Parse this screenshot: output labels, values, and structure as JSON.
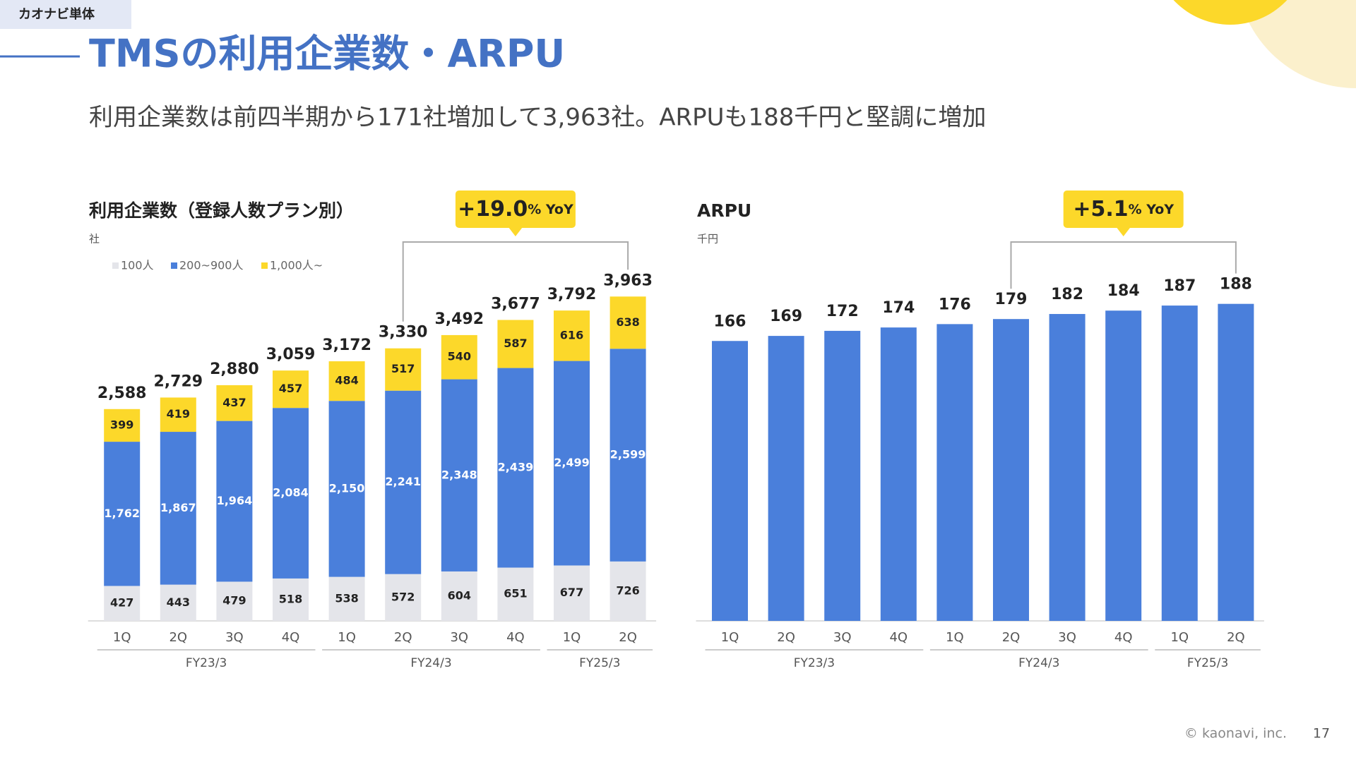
{
  "header": {
    "tag": "カオナビ単体",
    "title": "TMSの利用企業数・ARPU",
    "subtitle": "利用企業数は前四半期から171社増加して3,963社。ARPUも188千円と堅調に増加"
  },
  "chart_data": [
    {
      "type": "stacked_bar",
      "title": "利用企業数（登録人数プラン別）",
      "unit": "社",
      "category_groups": [
        {
          "label": "FY23/3",
          "categories": [
            "1Q",
            "2Q",
            "3Q",
            "4Q"
          ]
        },
        {
          "label": "FY24/3",
          "categories": [
            "1Q",
            "2Q",
            "3Q",
            "4Q"
          ]
        },
        {
          "label": "FY25/3",
          "categories": [
            "1Q",
            "2Q"
          ]
        }
      ],
      "series": [
        {
          "name": "100人",
          "color": "#e4e5ea",
          "values": [
            427,
            443,
            479,
            518,
            538,
            572,
            604,
            651,
            677,
            726
          ]
        },
        {
          "name": "200~900人",
          "color": "#4a7fdb",
          "values": [
            1762,
            1867,
            1964,
            2084,
            2150,
            2241,
            2348,
            2439,
            2499,
            2599
          ],
          "value_labels": [
            "1,762",
            "1,867",
            "1,964",
            "2,084",
            "2,150",
            "2,241",
            "2,348",
            "2,439",
            "2,499",
            "2,599"
          ]
        },
        {
          "name": "1,000人~",
          "color": "#fcd82a",
          "values": [
            399,
            419,
            437,
            457,
            484,
            517,
            540,
            587,
            616,
            638
          ]
        }
      ],
      "totals": {
        "values": [
          2588,
          2729,
          2880,
          3059,
          3172,
          3330,
          3492,
          3677,
          3792,
          3963
        ],
        "value_labels": [
          "2,588",
          "2,729",
          "2,880",
          "3,059",
          "3,172",
          "3,330",
          "3,492",
          "3,677",
          "3,792",
          "3,963"
        ]
      },
      "ylim": [
        0,
        4500
      ],
      "annotation": {
        "text": "+19.0",
        "suffix": "% YoY"
      }
    },
    {
      "type": "bar",
      "title": "ARPU",
      "unit": "千円",
      "category_groups": [
        {
          "label": "FY23/3",
          "categories": [
            "1Q",
            "2Q",
            "3Q",
            "4Q"
          ]
        },
        {
          "label": "FY24/3",
          "categories": [
            "1Q",
            "2Q",
            "3Q",
            "4Q"
          ]
        },
        {
          "label": "FY25/3",
          "categories": [
            "1Q",
            "2Q"
          ]
        }
      ],
      "values": [
        166,
        169,
        172,
        174,
        176,
        179,
        182,
        184,
        187,
        188
      ],
      "color": "#4a7fdb",
      "ylim": [
        0,
        200
      ],
      "annotation": {
        "text": "+5.1",
        "suffix": "% YoY"
      }
    }
  ],
  "footer": {
    "copyright": "© kaonavi, inc.",
    "page": 17
  }
}
